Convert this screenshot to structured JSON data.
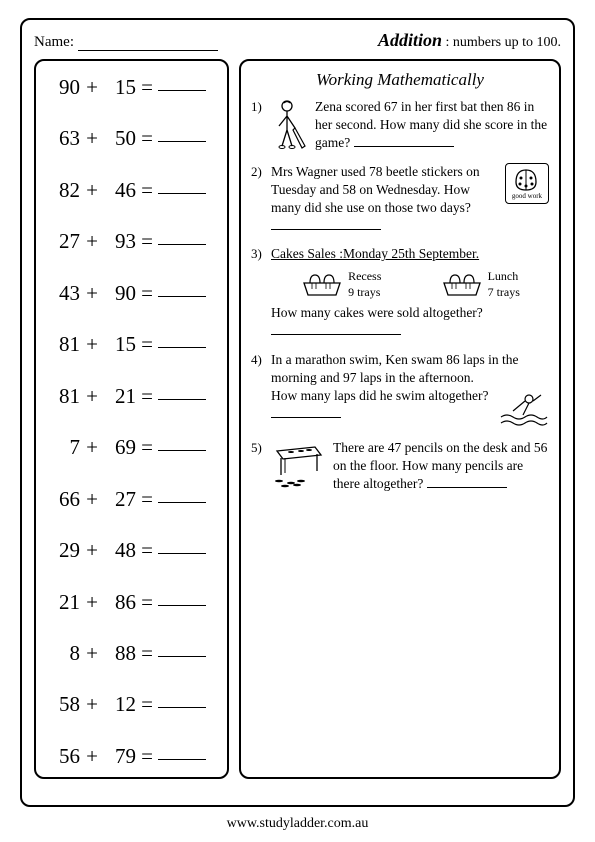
{
  "header": {
    "name_label": "Name:",
    "title_word": "Addition",
    "title_rest": ": numbers up to 100."
  },
  "problems": [
    {
      "a": "90",
      "b": "15"
    },
    {
      "a": "63",
      "b": "50"
    },
    {
      "a": "82",
      "b": "46"
    },
    {
      "a": "27",
      "b": "93"
    },
    {
      "a": "43",
      "b": "90"
    },
    {
      "a": "81",
      "b": "15"
    },
    {
      "a": "81",
      "b": "21"
    },
    {
      "a": "7",
      "b": "69"
    },
    {
      "a": "66",
      "b": "27"
    },
    {
      "a": "29",
      "b": "48"
    },
    {
      "a": "21",
      "b": "86"
    },
    {
      "a": "8",
      "b": "88"
    },
    {
      "a": "58",
      "b": "12"
    },
    {
      "a": "56",
      "b": "79"
    }
  ],
  "right": {
    "title": "Working Mathematically",
    "q1": {
      "num": "1)",
      "text": "Zena scored 67 in her first bat then 86 in her second. How many did she score in the game?"
    },
    "q2": {
      "num": "2)",
      "text": "Mrs Wagner used 78 beetle stickers on Tuesday and 58 on Wednesday. How many did she use on those two days?",
      "sticker_label": "good work"
    },
    "q3": {
      "num": "3)",
      "heading": "Cakes Sales :Monday 25th September.",
      "recess_label": "Recess",
      "recess_qty": "9 trays",
      "lunch_label": "Lunch",
      "lunch_qty": "7 trays",
      "question": "How many cakes were sold altogether?"
    },
    "q4": {
      "num": "4)",
      "text": "In a marathon swim, Ken swam 86 laps in the morning and 97 laps in the afternoon.",
      "question": "How many laps did he swim altogether?"
    },
    "q5": {
      "num": "5)",
      "text": "There are 47 pencils on the desk and 56 on the floor. How many pencils are there altogether?"
    }
  },
  "footer": "www.studyladder.com.au",
  "style": {
    "page_bg": "#ffffff",
    "ink": "#000000",
    "border_radius": 10,
    "problem_fontsize": 21,
    "wp_fontsize": 13.5
  }
}
